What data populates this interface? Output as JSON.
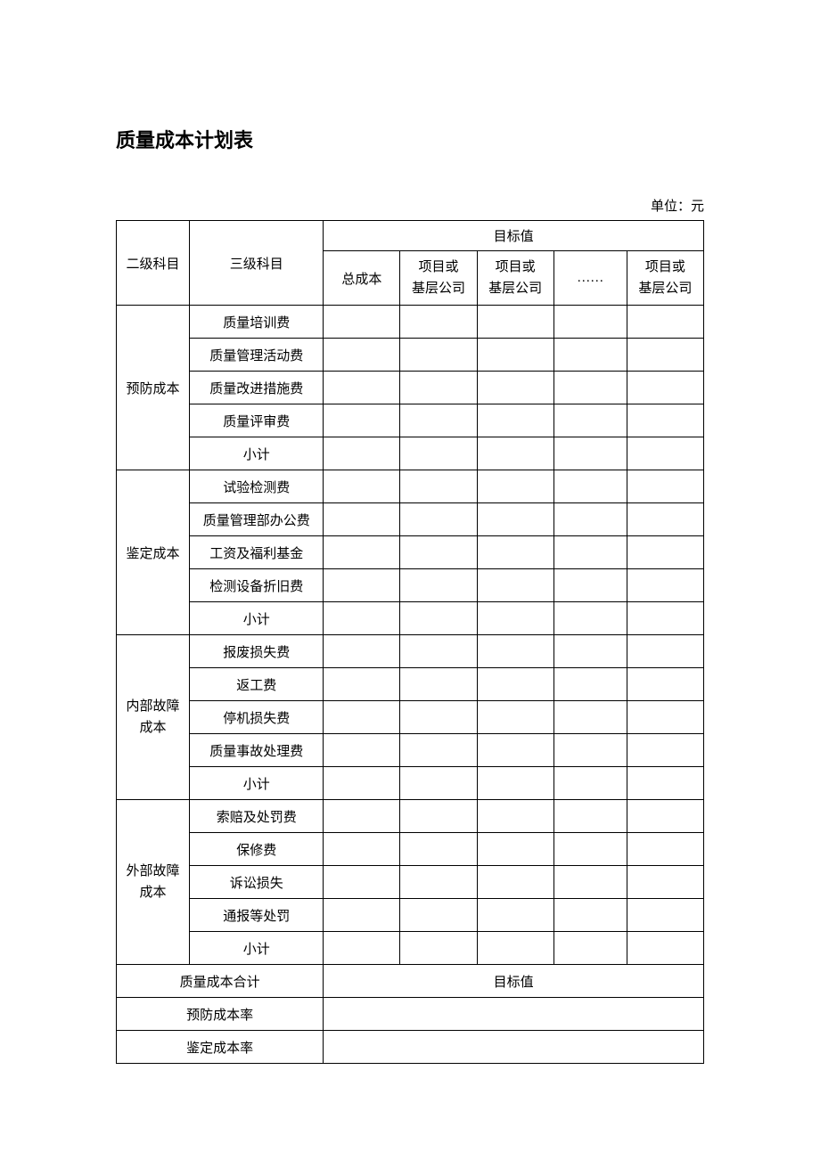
{
  "title": "质量成本计划表",
  "unit_label": "单位：元",
  "header": {
    "col_level2": "二级科目",
    "col_level3": "三级科目",
    "target_value": "目标值",
    "total_cost": "总成本",
    "project_or": "项目或",
    "base_company": "基层公司",
    "ellipsis": "……"
  },
  "sections": [
    {
      "name": "预防成本",
      "items": [
        "质量培训费",
        "质量管理活动费",
        "质量改进措施费",
        "质量评审费",
        "小计"
      ]
    },
    {
      "name": "鉴定成本",
      "items": [
        "试验检测费",
        "质量管理部办公费",
        "工资及福利基金",
        "检测设备折旧费",
        "小计"
      ]
    },
    {
      "name": "内部故障成本",
      "name_line1": "内部故障",
      "name_line2": "成本",
      "items": [
        "报废损失费",
        "返工费",
        "停机损失费",
        "质量事故处理费",
        "小计"
      ]
    },
    {
      "name": "外部故障成本",
      "name_line1": "外部故障",
      "name_line2": "成本",
      "items": [
        "索赔及处罚费",
        "保修费",
        "诉讼损失",
        "通报等处罚",
        "小计"
      ]
    }
  ],
  "footer": {
    "total_quality_cost": "质量成本合计",
    "total_target_value": "目标值",
    "prevention_rate": "预防成本率",
    "appraisal_rate": "鉴定成本率"
  }
}
